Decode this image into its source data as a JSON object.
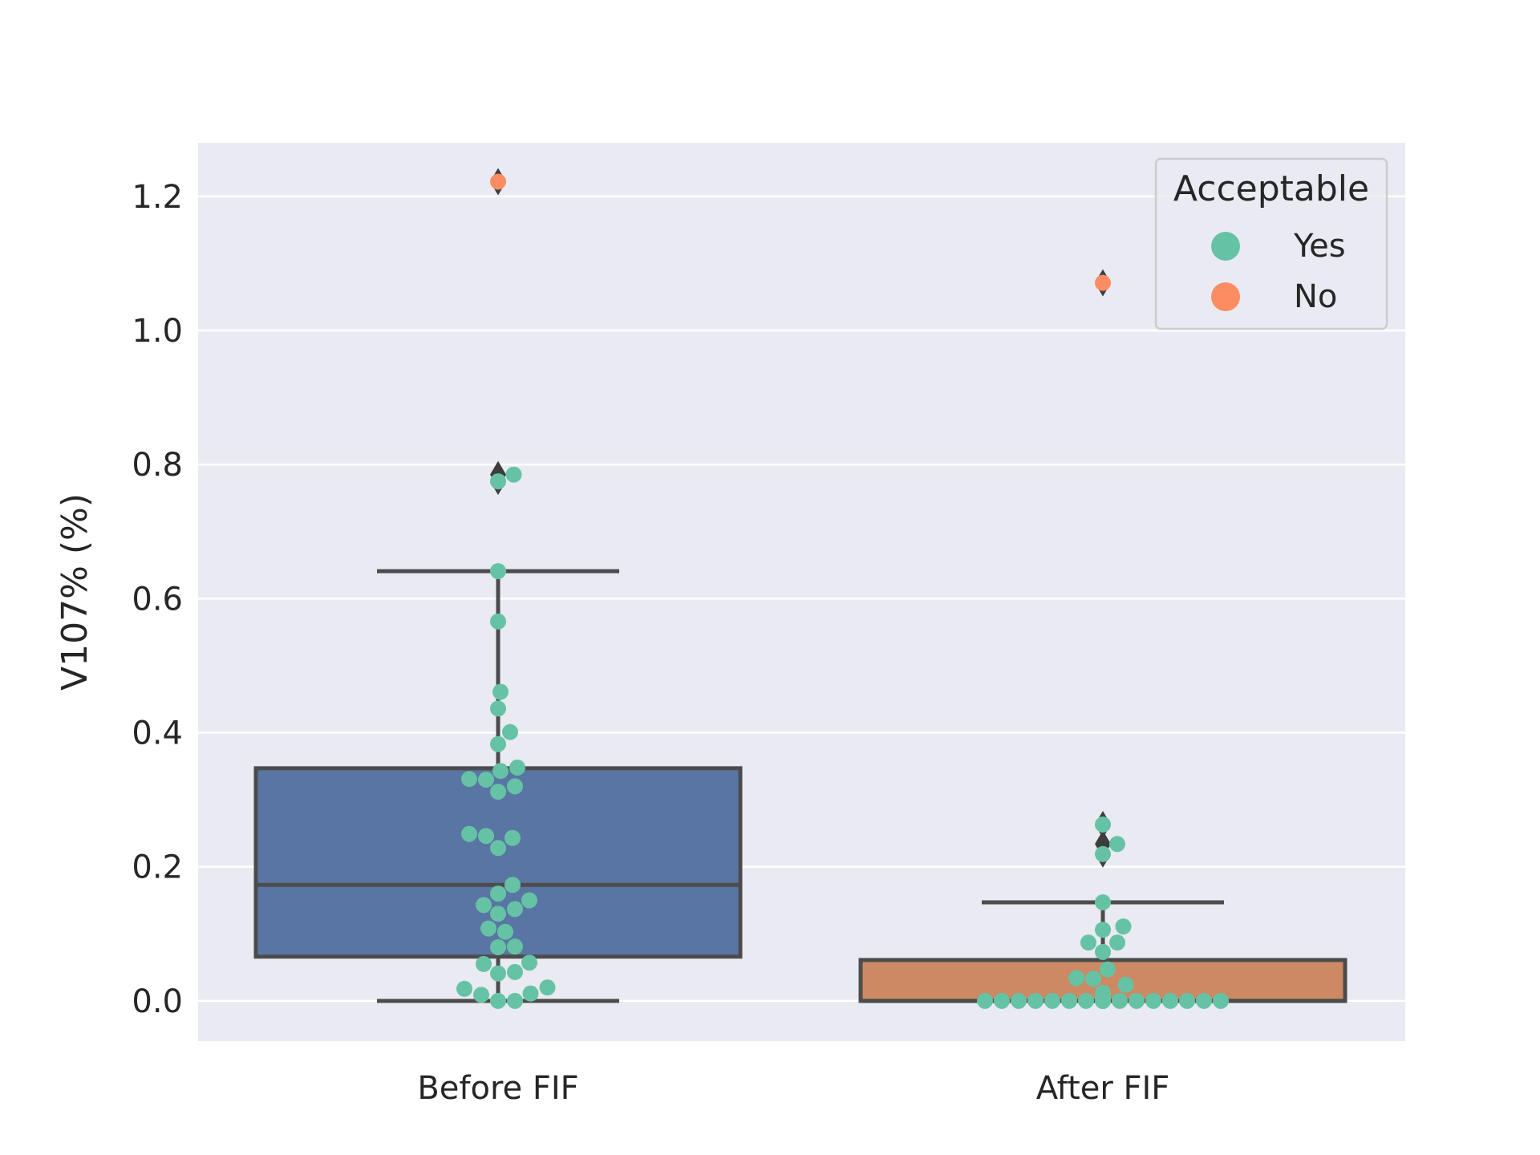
{
  "chart_data": {
    "type": "box",
    "ylabel": "V107% (%)",
    "ylim": [
      -0.06,
      1.28
    ],
    "yticks": [
      "0.0",
      "0.2",
      "0.4",
      "0.6",
      "0.8",
      "1.0",
      "1.2"
    ],
    "ytick_values": [
      0.0,
      0.2,
      0.4,
      0.6,
      0.8,
      1.0,
      1.2
    ],
    "grid": true,
    "categories": [
      "Before FIF",
      "After FIF"
    ],
    "boxes": [
      {
        "category": "Before FIF",
        "whisker_low": 0.0,
        "q1": 0.066,
        "median": 0.173,
        "q3": 0.347,
        "whisker_high": 0.641,
        "fliers": [
          0.785,
          0.775,
          1.222
        ],
        "color": "#5975a4"
      },
      {
        "category": "After FIF",
        "whisker_low": 0.0,
        "q1": 0.0,
        "median": 0.0,
        "q3": 0.061,
        "whisker_high": 0.147,
        "fliers": [
          0.263,
          0.234,
          0.219,
          1.071
        ],
        "color": "#cc8963"
      }
    ],
    "legend": {
      "title": "Acceptable",
      "position": "upper-right",
      "entries": [
        {
          "label": "Yes",
          "color": "#66c2a5"
        },
        {
          "label": "No",
          "color": "#fc8d62"
        }
      ]
    },
    "swarm": [
      {
        "category": "Before FIF",
        "yes": [
          0.0,
          0.0,
          0.009,
          0.011,
          0.018,
          0.02,
          0.041,
          0.043,
          0.055,
          0.057,
          0.08,
          0.081,
          0.103,
          0.108,
          0.13,
          0.137,
          0.143,
          0.15,
          0.16,
          0.173,
          0.228,
          0.243,
          0.246,
          0.249,
          0.312,
          0.32,
          0.33,
          0.331,
          0.343,
          0.348,
          0.383,
          0.401,
          0.436,
          0.461,
          0.566,
          0.641,
          0.775,
          0.785
        ],
        "no": [
          1.222
        ]
      },
      {
        "category": "After FIF",
        "yes": [
          0.0,
          0.0,
          0.0,
          0.0,
          0.0,
          0.0,
          0.0,
          0.0,
          0.0,
          0.0,
          0.0,
          0.0,
          0.0,
          0.0,
          0.0,
          0.0,
          0.0,
          0.0,
          0.0,
          0.0,
          0.0,
          0.0,
          0.0,
          0.004,
          0.007,
          0.012,
          0.024,
          0.033,
          0.034,
          0.047,
          0.073,
          0.087,
          0.087,
          0.106,
          0.111,
          0.147,
          0.219,
          0.234,
          0.263
        ],
        "no": [
          1.071
        ]
      }
    ]
  }
}
